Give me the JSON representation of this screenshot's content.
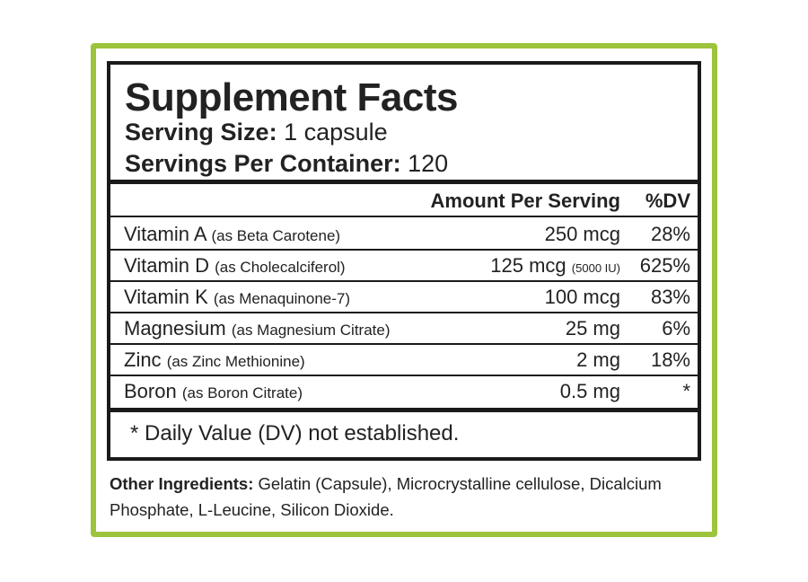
{
  "header": {
    "title": "Supplement Facts",
    "serving_size": {
      "label": "Serving Size:",
      "value": "1 capsule"
    },
    "servings_per_container": {
      "label": "Servings Per Container:",
      "value": "120"
    }
  },
  "table": {
    "columns": [
      "Amount Per Serving",
      "%DV"
    ],
    "rows": [
      {
        "nutrient": "Vitamin A",
        "source": "(as Beta Carotene)",
        "amount": "250 mcg",
        "dv": "28%"
      },
      {
        "nutrient": "Vitamin D",
        "source": "(as Cholecalciferol)",
        "amount": "125 mcg",
        "amount_note": "(5000 IU)",
        "dv": "625%"
      },
      {
        "nutrient": "Vitamin K",
        "source": "(as Menaquinone-7)",
        "amount": "100 mcg",
        "dv": "83%"
      },
      {
        "nutrient": "Magnesium",
        "source": "(as Magnesium Citrate)",
        "amount": "25 mg",
        "dv": "6%"
      },
      {
        "nutrient": "Zinc",
        "source": "(as Zinc Methionine)",
        "amount": "2 mg",
        "dv": "18%"
      },
      {
        "nutrient": "Boron",
        "source": "(as Boron Citrate)",
        "amount": "0.5 mg",
        "dv": "*"
      }
    ]
  },
  "footnote": "* Daily Value (DV) not established.",
  "other_ingredients": {
    "label": "Other Ingredients:",
    "text": "Gelatin (Capsule), Microcrystalline cellulose, Dicalcium Phosphate, L-Leucine, Silicon Dioxide."
  }
}
